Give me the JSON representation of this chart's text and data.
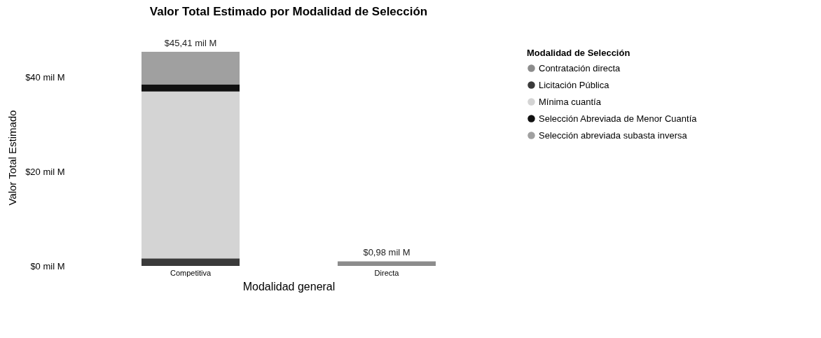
{
  "chart_data": {
    "type": "bar",
    "stacked": true,
    "title": "Valor Total Estimado por Modalidad de Selección",
    "xlabel": "Modalidad general",
    "ylabel": "Valor Total Estimado",
    "legend_title": "Modalidad de Selección",
    "legend": "right",
    "categories": [
      "Competitiva",
      "Directa"
    ],
    "series": [
      {
        "name": "Contratación directa",
        "color": "#8c8c8c",
        "values": [
          null,
          0.98
        ]
      },
      {
        "name": "Licitación Pública",
        "color": "#3a3a3a",
        "values": [
          1.6,
          null
        ]
      },
      {
        "name": "Mínima cuantía",
        "color": "#d4d4d4",
        "values": [
          35.4,
          null
        ]
      },
      {
        "name": "Selección Abreviada de Menor Cuantía",
        "color": "#111111",
        "values": [
          1.5,
          null
        ]
      },
      {
        "name": "Selección abreviada subasta inversa",
        "color": "#a0a0a0",
        "values": [
          6.9,
          null
        ]
      }
    ],
    "totals": [
      "$45,41 mil M",
      "$0,98 mil M"
    ],
    "ylim": [
      0,
      46
    ],
    "yticks": [
      {
        "value": 0,
        "label": "$0 mil M"
      },
      {
        "value": 20,
        "label": "$20 mil M"
      },
      {
        "value": 40,
        "label": "$40 mil M"
      }
    ]
  }
}
